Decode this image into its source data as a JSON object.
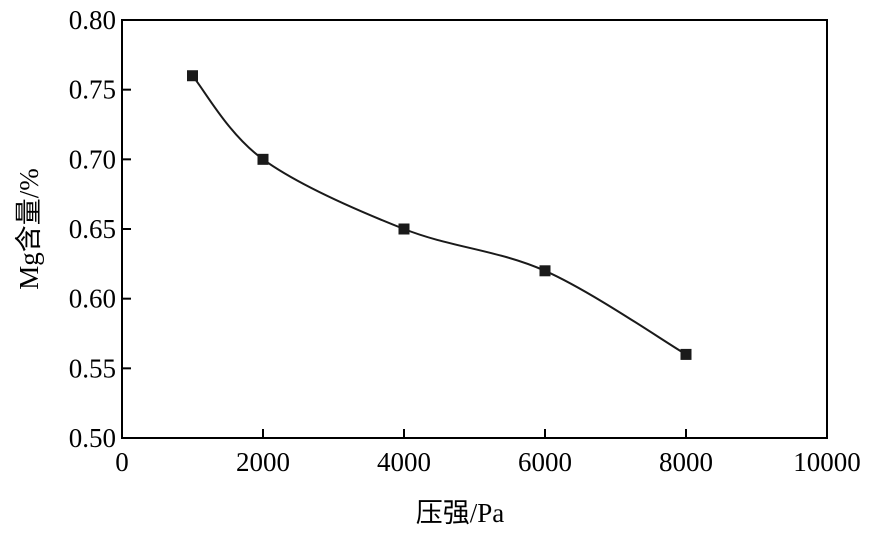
{
  "chart_data": {
    "type": "line",
    "title": "",
    "xlabel": "压强/Pa",
    "ylabel": "Mg含量/%",
    "xlim": [
      0,
      10000
    ],
    "ylim": [
      0.5,
      0.8
    ],
    "x_ticks": [
      "0",
      "2000",
      "4000",
      "6000",
      "8000",
      "10000"
    ],
    "y_ticks": [
      "0.50",
      "0.55",
      "0.60",
      "0.65",
      "0.70",
      "0.75",
      "0.80"
    ],
    "grid": false,
    "legend": "none",
    "series": [
      {
        "marker": "square",
        "color": "#1a1a1a",
        "x": [
          1000,
          2000,
          4000,
          6000,
          8000
        ],
        "y": [
          0.76,
          0.7,
          0.65,
          0.62,
          0.56
        ]
      }
    ]
  }
}
